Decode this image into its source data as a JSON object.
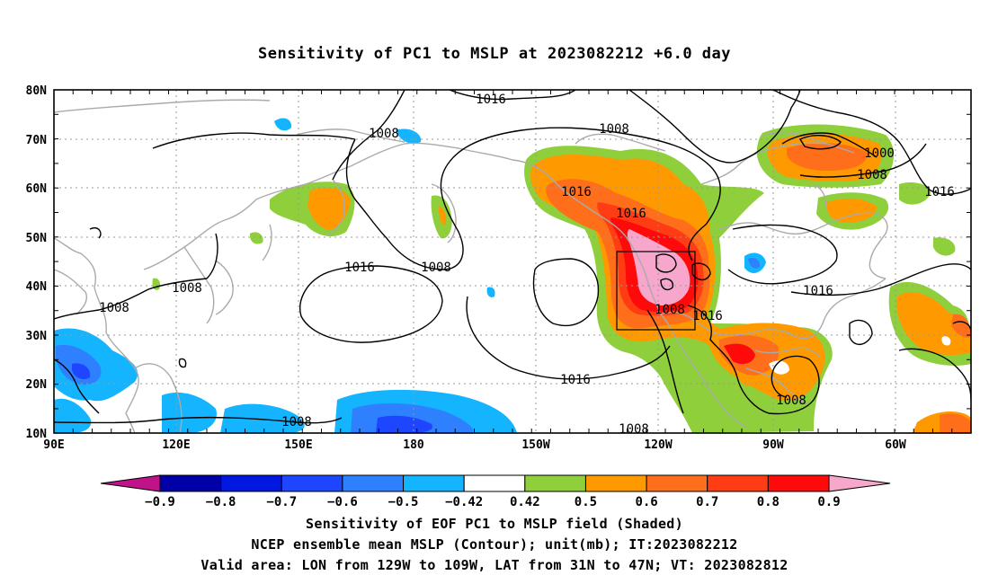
{
  "title": "Sensitivity of PC1 to MSLP at 2023082212 +6.0 day",
  "captions": {
    "line1": "Sensitivity of EOF PC1 to MSLP field (Shaded)",
    "line2": "NCEP ensemble mean MSLP (Contour); unit(mb); IT:2023082212",
    "line3": "Valid area: LON from 129W to 109W, LAT from 31N to 47N; VT: 2023082812"
  },
  "map": {
    "lat_labels": [
      "80N",
      "70N",
      "60N",
      "50N",
      "40N",
      "30N",
      "20N",
      "10N"
    ],
    "lon_labels": [
      "90E",
      "120E",
      "150E",
      "180",
      "150W",
      "120W",
      "90W",
      "60W"
    ],
    "valid_box": {
      "lon_west": "129W",
      "lon_east": "109W",
      "lat_south": "31N",
      "lat_north": "47N"
    },
    "contour_labels": [
      "1016",
      "1008",
      "1016",
      "1008",
      "1016",
      "1016",
      "1008",
      "1016",
      "1008",
      "1016",
      "1008",
      "1008",
      "1016",
      "1016",
      "1000",
      "1008",
      "1016",
      "1008",
      "1016",
      "1008",
      "1008"
    ]
  },
  "colorbar": {
    "labels": [
      "-0.9",
      "-0.8",
      "-0.7",
      "-0.6",
      "-0.5",
      "-0.42",
      "0.42",
      "0.5",
      "0.6",
      "0.7",
      "0.8",
      "0.9"
    ],
    "colors": [
      "#0000a8",
      "#0018e0",
      "#1e46ff",
      "#2f80ff",
      "#14b4ff",
      "#ffffff",
      "#8fcf3c",
      "#ff9900",
      "#ff6e1a",
      "#ff3c14",
      "#ff0a0a"
    ],
    "low_extend_color": "#c0138a",
    "high_extend_color": "#f7a6cc",
    "shade_colors": {
      "green": "#8fcf3c",
      "orange": "#ff9900",
      "dark_orange": "#ff6e1a",
      "red_orange": "#ff3c14",
      "red": "#ff0a0a",
      "pink": "#f7a6cc",
      "cyan": "#14b4ff",
      "light_blue": "#2f80ff",
      "blue": "#1e46ff"
    }
  }
}
